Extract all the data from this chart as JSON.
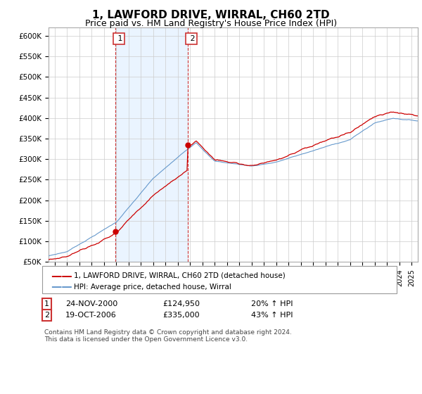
{
  "title": "1, LAWFORD DRIVE, WIRRAL, CH60 2TD",
  "subtitle": "Price paid vs. HM Land Registry's House Price Index (HPI)",
  "ylim": [
    50000,
    620000
  ],
  "yticks": [
    50000,
    100000,
    150000,
    200000,
    250000,
    300000,
    350000,
    400000,
    450000,
    500000,
    550000,
    600000
  ],
  "ytick_labels": [
    "£50K",
    "£100K",
    "£150K",
    "£200K",
    "£250K",
    "£300K",
    "£350K",
    "£400K",
    "£450K",
    "£500K",
    "£550K",
    "£600K"
  ],
  "legend_line1": "1, LAWFORD DRIVE, WIRRAL, CH60 2TD (detached house)",
  "legend_line2": "HPI: Average price, detached house, Wirral",
  "sale1_label": "1",
  "sale1_date": "24-NOV-2000",
  "sale1_price": "£124,950",
  "sale1_hpi": "20% ↑ HPI",
  "sale2_label": "2",
  "sale2_date": "19-OCT-2006",
  "sale2_price": "£335,000",
  "sale2_hpi": "43% ↑ HPI",
  "footnote": "Contains HM Land Registry data © Crown copyright and database right 2024.\nThis data is licensed under the Open Government Licence v3.0.",
  "line_color_red": "#cc0000",
  "line_color_blue": "#6699cc",
  "vline_color": "#cc3333",
  "sale1_x": 2000.9,
  "sale2_x": 2006.8,
  "sale1_price_val": 124950,
  "sale2_price_val": 335000,
  "background_color": "#ffffff",
  "grid_color": "#cccccc",
  "title_fontsize": 11,
  "subtitle_fontsize": 9,
  "hpi_area_color": "#ddeeff",
  "xlim_left": 1995.5,
  "xlim_right": 2025.5
}
